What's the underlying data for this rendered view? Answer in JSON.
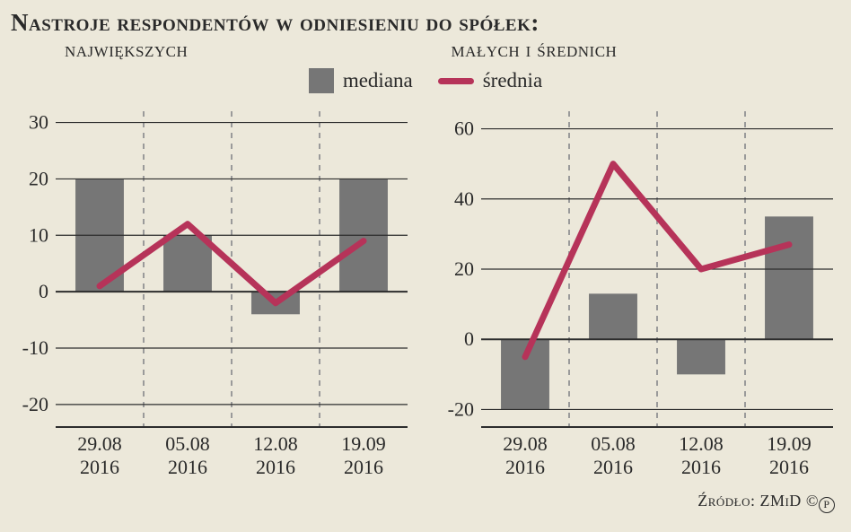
{
  "title": "Nastroje respondentów w odniesieniu do spółek:",
  "subtitle_left": "największych",
  "subtitle_right": "małych i średnich",
  "legend": {
    "median_label": "mediana",
    "mean_label": "średnia"
  },
  "colors": {
    "background": "#ece8da",
    "bar": "#767676",
    "line": "#b63359",
    "grid": "#2d2d2d",
    "dash": "#9a9a9a",
    "text": "#2a2a2a"
  },
  "chart_left": {
    "type": "bar+line",
    "categories": [
      "29.08\n2016",
      "05.08\n2016",
      "12.08\n2016",
      "19.09\n2016"
    ],
    "bars": [
      20,
      10,
      -4,
      20
    ],
    "line": [
      1,
      12,
      -2,
      9
    ],
    "ylim": [
      -24,
      32
    ],
    "yticks": [
      -20,
      -10,
      0,
      10,
      20,
      30
    ],
    "label_fontsize": 22,
    "tick_fontsize": 22,
    "line_width": 7,
    "bar_width": 0.55
  },
  "chart_right": {
    "type": "bar+line",
    "categories": [
      "29.08\n2016",
      "05.08\n2016",
      "12.08\n2016",
      "19.09\n2016"
    ],
    "bars": [
      -20,
      13,
      -10,
      35
    ],
    "line": [
      -5,
      50,
      20,
      27
    ],
    "ylim": [
      -25,
      65
    ],
    "yticks": [
      -20,
      0,
      20,
      40,
      60
    ],
    "label_fontsize": 22,
    "tick_fontsize": 22,
    "line_width": 7,
    "bar_width": 0.55
  },
  "footer": {
    "source_label": "Źródło: ZMiD",
    "copyright_c": "©",
    "copyright_p": "℗"
  }
}
